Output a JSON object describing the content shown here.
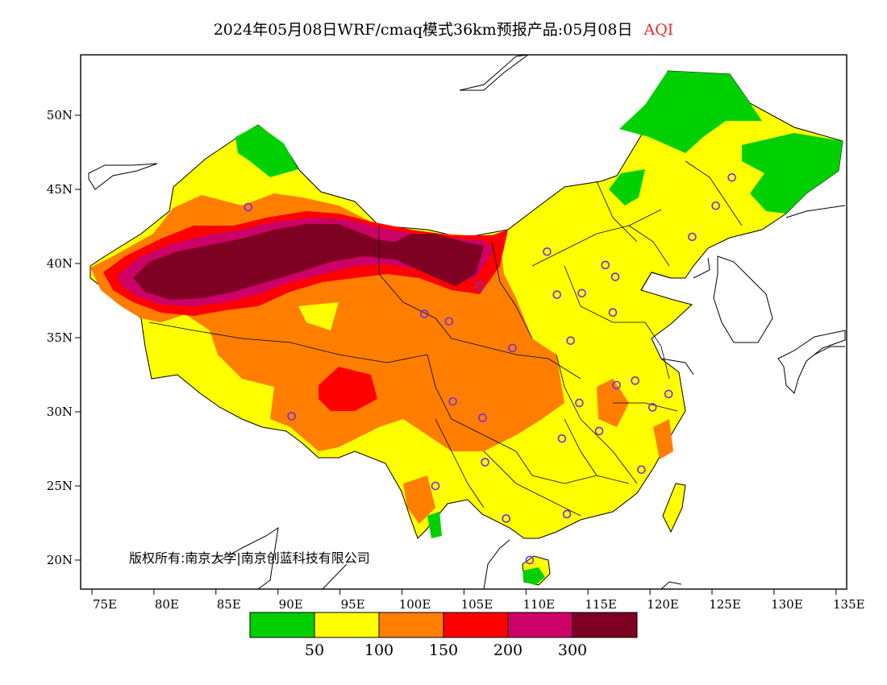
{
  "title": {
    "main": "2024年05月08日WRF/cmaq模式36km预报产品:05月08日",
    "variable": "AQI",
    "variable_color": "#d9302a"
  },
  "axes": {
    "x_ticks": [
      "75E",
      "80E",
      "85E",
      "90E",
      "95E",
      "100E",
      "105E",
      "110E",
      "115E",
      "120E",
      "125E",
      "130E",
      "135E"
    ],
    "y_ticks": [
      "50N",
      "45N",
      "40N",
      "35N",
      "30N",
      "25N",
      "20N"
    ],
    "lon_range": [
      73,
      135
    ],
    "lat_range": [
      18,
      54
    ]
  },
  "copyright": "版权所有:南京大学|南京创蓝科技有限公司",
  "legend": {
    "colors": [
      "#00d000",
      "#ffff00",
      "#ff7e00",
      "#ff0000",
      "#cc0066",
      "#7e0023"
    ],
    "labels": [
      "50",
      "100",
      "150",
      "200",
      "300"
    ]
  },
  "stations": [
    [
      126.6,
      45.8
    ],
    [
      125.3,
      43.9
    ],
    [
      123.4,
      41.8
    ],
    [
      87.6,
      43.8
    ],
    [
      111.7,
      40.8
    ],
    [
      116.4,
      39.9
    ],
    [
      117.2,
      39.1
    ],
    [
      112.5,
      37.9
    ],
    [
      114.5,
      38.0
    ],
    [
      106.3,
      38.5
    ],
    [
      101.8,
      36.6
    ],
    [
      103.8,
      36.1
    ],
    [
      117.0,
      36.7
    ],
    [
      108.9,
      34.3
    ],
    [
      113.6,
      34.8
    ],
    [
      117.3,
      31.8
    ],
    [
      118.8,
      32.1
    ],
    [
      121.5,
      31.2
    ],
    [
      120.2,
      30.3
    ],
    [
      104.1,
      30.7
    ],
    [
      106.5,
      29.6
    ],
    [
      114.3,
      30.6
    ],
    [
      115.9,
      28.7
    ],
    [
      112.9,
      28.2
    ],
    [
      91.1,
      29.7
    ],
    [
      106.7,
      26.6
    ],
    [
      102.7,
      25.0
    ],
    [
      119.3,
      26.1
    ],
    [
      108.4,
      22.8
    ],
    [
      113.3,
      23.1
    ],
    [
      110.3,
      20.0
    ]
  ]
}
